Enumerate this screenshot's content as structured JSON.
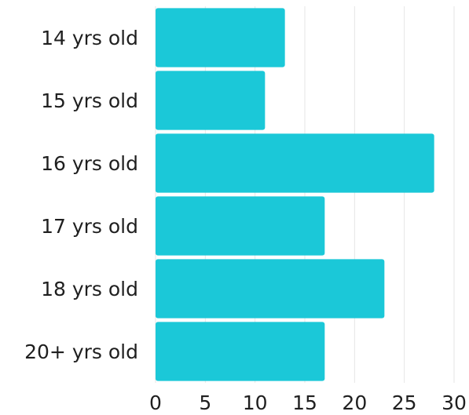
{
  "chart_data": {
    "type": "bar",
    "orientation": "horizontal",
    "categories": [
      "14 yrs old",
      "15 yrs old",
      "16 yrs old",
      "17 yrs old",
      "18 yrs old",
      "20+ yrs old"
    ],
    "values": [
      13,
      11,
      28,
      17,
      23,
      17
    ],
    "title": "",
    "xlabel": "",
    "ylabel": "",
    "xlim": [
      0,
      30
    ],
    "x_ticks": [
      "0",
      "5",
      "10",
      "15",
      "20",
      "25",
      "30"
    ],
    "grid": true,
    "legend": "none",
    "bar_color": "#1bc8d8"
  }
}
